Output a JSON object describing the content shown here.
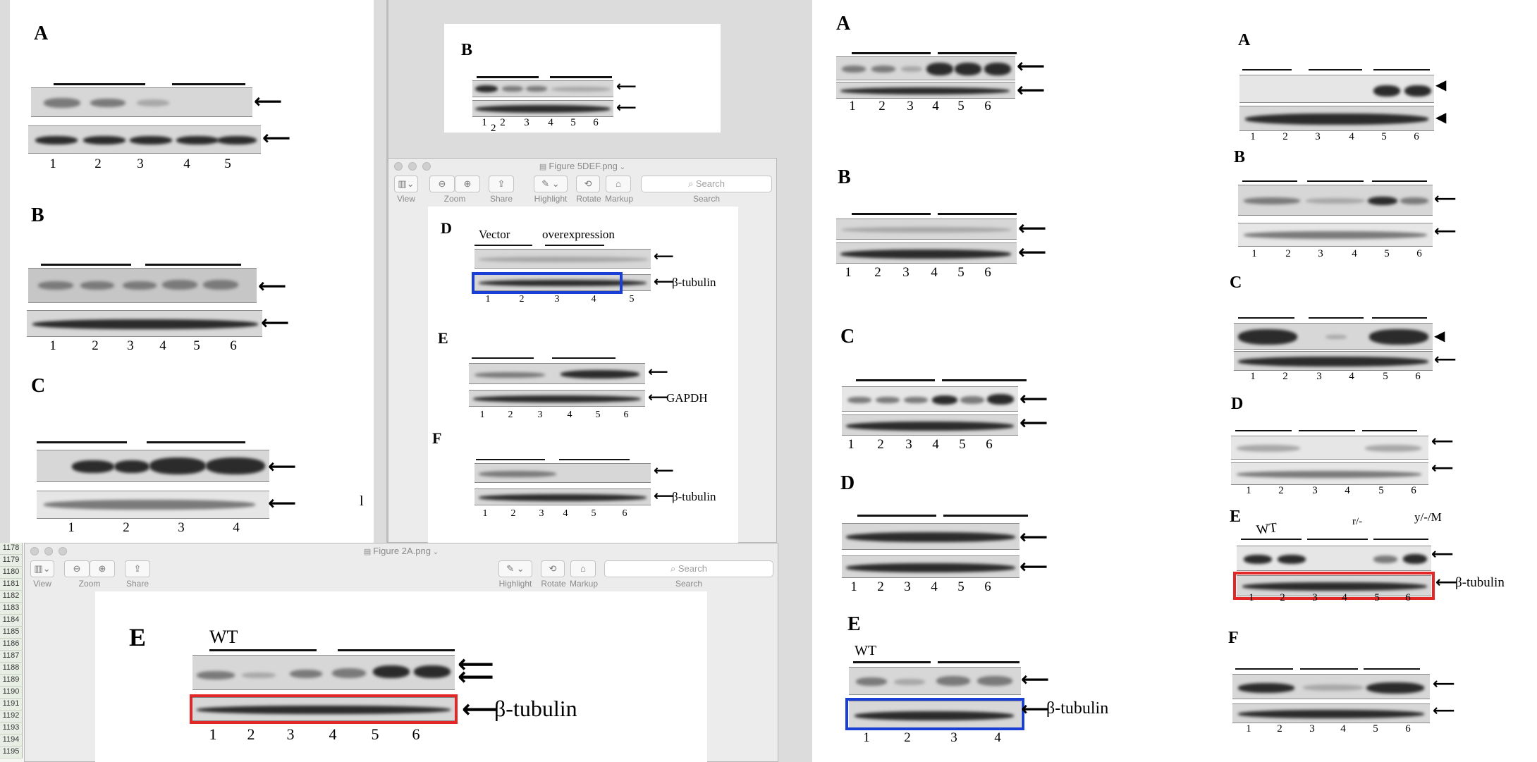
{
  "window_top": {
    "title": "Figure 5DEF.png",
    "toolbar": {
      "view": "View",
      "zoom": "Zoom",
      "share": "Share",
      "highlight": "Highlight",
      "rotate": "Rotate",
      "markup": "Markup",
      "search_placeholder": "Search",
      "search_caption": "Search"
    }
  },
  "window_bottom": {
    "title": "Figure 2A.png",
    "toolbar": {
      "view": "View",
      "zoom": "Zoom",
      "share": "Share",
      "highlight": "Highlight",
      "rotate": "Rotate",
      "markup": "Markup",
      "search_placeholder": "Search",
      "search_caption": "Search"
    }
  },
  "spreadsheet_rows": [
    "1178",
    "1179",
    "1180",
    "1181",
    "1182",
    "1183",
    "1184",
    "1185",
    "1186",
    "1187",
    "1188",
    "1189",
    "1190",
    "1191",
    "1192",
    "1193",
    "1194",
    "1195"
  ],
  "left_doc": {
    "panels": [
      {
        "letter": "A",
        "lanes": [
          "1",
          "2",
          "3",
          "4",
          "5"
        ]
      },
      {
        "letter": "B",
        "lanes": [
          "1",
          "2",
          "3",
          "4",
          "5",
          "6"
        ]
      },
      {
        "letter": "C",
        "lanes": [
          "1",
          "2",
          "3",
          "4"
        ],
        "stray": "l"
      }
    ]
  },
  "top_mid_doc": {
    "letter": "B",
    "lanes": [
      "1",
      "2",
      "3",
      "4",
      "5",
      "6"
    ],
    "stray": "2"
  },
  "fig5def": {
    "D": {
      "letter": "D",
      "header_left": "Vector",
      "header_right": "overexpression",
      "row2_label": "β-tubulin",
      "lanes": [
        "1",
        "2",
        "3",
        "4",
        "5"
      ]
    },
    "E": {
      "letter": "E",
      "row2_label": "GAPDH",
      "lanes": [
        "1",
        "2",
        "3",
        "4",
        "5",
        "6"
      ]
    },
    "F": {
      "letter": "F",
      "row2_label": "β-tubulin",
      "lanes": [
        "1",
        "2",
        "3",
        "4",
        "5",
        "6"
      ]
    }
  },
  "fig2a": {
    "letter": "E",
    "header_left": "WT",
    "row2_label": "β-tubulin",
    "lanes": [
      "1",
      "2",
      "3",
      "4",
      "5",
      "6"
    ]
  },
  "right_doc1": {
    "panels": [
      {
        "letter": "A",
        "lanes": [
          "1",
          "2",
          "3",
          "4",
          "5",
          "6"
        ]
      },
      {
        "letter": "B",
        "lanes": [
          "1",
          "2",
          "3",
          "4",
          "5",
          "6"
        ]
      },
      {
        "letter": "C",
        "lanes": [
          "1",
          "2",
          "3",
          "4",
          "5",
          "6"
        ]
      },
      {
        "letter": "D",
        "lanes": [
          "1",
          "2",
          "3",
          "4",
          "5",
          "6"
        ]
      },
      {
        "letter": "E",
        "header_left": "WT",
        "row2_label": "β-tubulin",
        "lanes": [
          "1",
          "2",
          "3",
          "4"
        ]
      }
    ]
  },
  "right_doc2": {
    "panels": [
      {
        "letter": "A",
        "lanes": [
          "1",
          "2",
          "3",
          "4",
          "5",
          "6"
        ]
      },
      {
        "letter": "B",
        "lanes": [
          "1",
          "2",
          "3",
          "4",
          "5",
          "6"
        ]
      },
      {
        "letter": "C",
        "lanes": [
          "1",
          "2",
          "3",
          "4",
          "5",
          "6"
        ]
      },
      {
        "letter": "D",
        "lanes": [
          "1",
          "2",
          "3",
          "4",
          "5",
          "6"
        ]
      },
      {
        "letter": "E",
        "header_left": "WT",
        "header_mid": "r/-",
        "header_right": "y/-/M",
        "row2_label": "β-tubulin",
        "lanes": [
          "1",
          "2",
          "3",
          "4",
          "5",
          "6"
        ]
      },
      {
        "letter": "F",
        "lanes": [
          "1",
          "2",
          "3",
          "4",
          "5",
          "6"
        ]
      }
    ]
  }
}
